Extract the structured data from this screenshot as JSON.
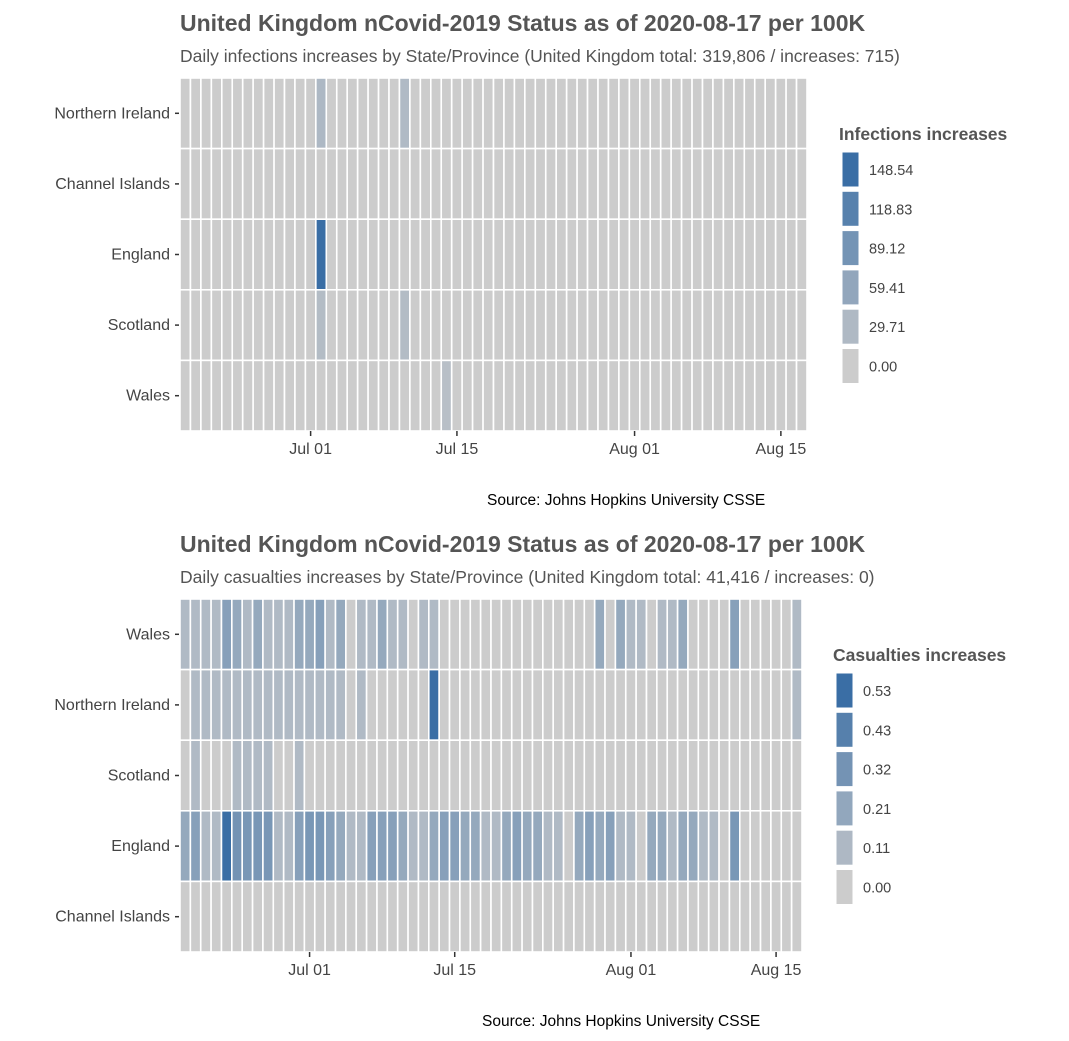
{
  "charts": [
    {
      "title": "United Kingdom nCovid-2019 Status as of 2020-08-17 per 100K",
      "subtitle": "Daily infections increases by State/Province (United Kingdom total: 319,806 / increases: 715)",
      "caption": "Source: Johns Hopkins University CSSE",
      "legend_title": "Infections increases",
      "legend_labels": [
        "148.54",
        "118.83",
        "89.12",
        "59.41",
        "29.71",
        "0.00"
      ]
    },
    {
      "title": "United Kingdom nCovid-2019 Status as of 2020-08-17 per 100K",
      "subtitle": "Daily casualties increases by State/Province (United Kingdom total: 41,416 / increases: 0)",
      "caption": "Source: Johns Hopkins University CSSE",
      "legend_title": "Casualties increases",
      "legend_labels": [
        "0.53",
        "0.43",
        "0.32",
        "0.21",
        "0.11",
        "0.00"
      ]
    }
  ],
  "colors": {
    "low": "#cccccc",
    "high": "#3a6ea5",
    "grid_line": "#ffffff",
    "text": "#555555"
  },
  "chart_data": [
    {
      "type": "heatmap",
      "title": "United Kingdom nCovid-2019 Status as of 2020-08-17 per 100K",
      "x_start": "2020-06-19",
      "x_end": "2020-08-17",
      "xticks": [
        {
          "date": "2020-07-01",
          "label": "Jul 01"
        },
        {
          "date": "2020-07-15",
          "label": "Jul 15"
        },
        {
          "date": "2020-08-01",
          "label": "Aug 01"
        },
        {
          "date": "2020-08-15",
          "label": "Aug 15"
        }
      ],
      "rows": [
        "Northern Ireland",
        "Channel Islands",
        "England",
        "Scotland",
        "Wales"
      ],
      "max": 148.54,
      "default_value": 0,
      "cells": [
        {
          "row": "Northern Ireland",
          "date": "2020-07-02",
          "value": 32
        },
        {
          "row": "Northern Ireland",
          "date": "2020-07-10",
          "value": 28
        },
        {
          "row": "England",
          "date": "2020-07-02",
          "value": 148.54
        },
        {
          "row": "Scotland",
          "date": "2020-07-02",
          "value": 25
        },
        {
          "row": "Scotland",
          "date": "2020-07-10",
          "value": 25
        },
        {
          "row": "Wales",
          "date": "2020-07-14",
          "value": 20
        }
      ]
    },
    {
      "type": "heatmap",
      "title": "United Kingdom nCovid-2019 Status as of 2020-08-17 per 100K",
      "x_start": "2020-06-19",
      "x_end": "2020-08-17",
      "xticks": [
        {
          "date": "2020-07-01",
          "label": "Jul 01"
        },
        {
          "date": "2020-07-15",
          "label": "Jul 15"
        },
        {
          "date": "2020-08-01",
          "label": "Aug 01"
        },
        {
          "date": "2020-08-15",
          "label": "Aug 15"
        }
      ],
      "rows": [
        "Wales",
        "Northern Ireland",
        "Scotland",
        "England",
        "Channel Islands"
      ],
      "max": 0.53,
      "default_value": 0,
      "cells": [
        {
          "row": "Wales",
          "date": "2020-06-19",
          "value": 0.1
        },
        {
          "row": "Wales",
          "date": "2020-06-20",
          "value": 0.1
        },
        {
          "row": "Wales",
          "date": "2020-06-21",
          "value": 0.1
        },
        {
          "row": "Wales",
          "date": "2020-06-22",
          "value": 0.1
        },
        {
          "row": "Wales",
          "date": "2020-06-23",
          "value": 0.25
        },
        {
          "row": "Wales",
          "date": "2020-06-24",
          "value": 0.2
        },
        {
          "row": "Wales",
          "date": "2020-06-25",
          "value": 0.1
        },
        {
          "row": "Wales",
          "date": "2020-06-26",
          "value": 0.2
        },
        {
          "row": "Wales",
          "date": "2020-06-27",
          "value": 0.1
        },
        {
          "row": "Wales",
          "date": "2020-06-28",
          "value": 0.1
        },
        {
          "row": "Wales",
          "date": "2020-06-29",
          "value": 0.1
        },
        {
          "row": "Wales",
          "date": "2020-06-30",
          "value": 0.2
        },
        {
          "row": "Wales",
          "date": "2020-07-01",
          "value": 0.2
        },
        {
          "row": "Wales",
          "date": "2020-07-02",
          "value": 0.25
        },
        {
          "row": "Wales",
          "date": "2020-07-03",
          "value": 0.1
        },
        {
          "row": "Wales",
          "date": "2020-07-04",
          "value": 0.2
        },
        {
          "row": "Wales",
          "date": "2020-07-06",
          "value": 0.1
        },
        {
          "row": "Wales",
          "date": "2020-07-07",
          "value": 0.1
        },
        {
          "row": "Wales",
          "date": "2020-07-08",
          "value": 0.2
        },
        {
          "row": "Wales",
          "date": "2020-07-09",
          "value": 0.1
        },
        {
          "row": "Wales",
          "date": "2020-07-10",
          "value": 0.1
        },
        {
          "row": "Wales",
          "date": "2020-07-12",
          "value": 0.1
        },
        {
          "row": "Wales",
          "date": "2020-07-13",
          "value": 0.1
        },
        {
          "row": "Wales",
          "date": "2020-08-02",
          "value": 0.1
        },
        {
          "row": "Wales",
          "date": "2020-07-29",
          "value": 0.2
        },
        {
          "row": "Wales",
          "date": "2020-07-31",
          "value": 0.2
        },
        {
          "row": "Wales",
          "date": "2020-08-01",
          "value": 0.1
        },
        {
          "row": "Wales",
          "date": "2020-08-04",
          "value": 0.1
        },
        {
          "row": "Wales",
          "date": "2020-08-05",
          "value": 0.1
        },
        {
          "row": "Wales",
          "date": "2020-08-06",
          "value": 0.2
        },
        {
          "row": "Wales",
          "date": "2020-08-11",
          "value": 0.25
        },
        {
          "row": "Wales",
          "date": "2020-08-17",
          "value": 0.1
        },
        {
          "row": "Northern Ireland",
          "date": "2020-06-20",
          "value": 0.1
        },
        {
          "row": "Northern Ireland",
          "date": "2020-06-21",
          "value": 0.1
        },
        {
          "row": "Northern Ireland",
          "date": "2020-06-22",
          "value": 0.1
        },
        {
          "row": "Northern Ireland",
          "date": "2020-06-23",
          "value": 0.1
        },
        {
          "row": "Northern Ireland",
          "date": "2020-06-24",
          "value": 0.1
        },
        {
          "row": "Northern Ireland",
          "date": "2020-06-25",
          "value": 0.1
        },
        {
          "row": "Northern Ireland",
          "date": "2020-06-26",
          "value": 0.1
        },
        {
          "row": "Northern Ireland",
          "date": "2020-06-27",
          "value": 0.1
        },
        {
          "row": "Northern Ireland",
          "date": "2020-06-28",
          "value": 0.1
        },
        {
          "row": "Northern Ireland",
          "date": "2020-06-29",
          "value": 0.1
        },
        {
          "row": "Northern Ireland",
          "date": "2020-06-30",
          "value": 0.1
        },
        {
          "row": "Northern Ireland",
          "date": "2020-07-01",
          "value": 0.1
        },
        {
          "row": "Northern Ireland",
          "date": "2020-07-02",
          "value": 0.1
        },
        {
          "row": "Northern Ireland",
          "date": "2020-07-03",
          "value": 0.1
        },
        {
          "row": "Northern Ireland",
          "date": "2020-07-04",
          "value": 0.1
        },
        {
          "row": "Northern Ireland",
          "date": "2020-07-06",
          "value": 0.1
        },
        {
          "row": "Northern Ireland",
          "date": "2020-07-13",
          "value": 0.53
        },
        {
          "row": "Northern Ireland",
          "date": "2020-08-17",
          "value": 0.1
        },
        {
          "row": "Scotland",
          "date": "2020-06-20",
          "value": 0.1
        },
        {
          "row": "Scotland",
          "date": "2020-06-24",
          "value": 0.1
        },
        {
          "row": "Scotland",
          "date": "2020-06-25",
          "value": 0.1
        },
        {
          "row": "Scotland",
          "date": "2020-06-26",
          "value": 0.1
        },
        {
          "row": "Scotland",
          "date": "2020-06-27",
          "value": 0.1
        },
        {
          "row": "Scotland",
          "date": "2020-06-30",
          "value": 0.1
        },
        {
          "row": "England",
          "date": "2020-06-19",
          "value": 0.2
        },
        {
          "row": "England",
          "date": "2020-06-20",
          "value": 0.25
        },
        {
          "row": "England",
          "date": "2020-06-21",
          "value": 0.1
        },
        {
          "row": "England",
          "date": "2020-06-22",
          "value": 0.1
        },
        {
          "row": "England",
          "date": "2020-06-23",
          "value": 0.53
        },
        {
          "row": "England",
          "date": "2020-06-24",
          "value": 0.32
        },
        {
          "row": "England",
          "date": "2020-06-25",
          "value": 0.3
        },
        {
          "row": "England",
          "date": "2020-06-26",
          "value": 0.3
        },
        {
          "row": "England",
          "date": "2020-06-27",
          "value": 0.3
        },
        {
          "row": "England",
          "date": "2020-06-28",
          "value": 0.1
        },
        {
          "row": "England",
          "date": "2020-06-29",
          "value": 0.1
        },
        {
          "row": "England",
          "date": "2020-06-30",
          "value": 0.25
        },
        {
          "row": "England",
          "date": "2020-07-01",
          "value": 0.3
        },
        {
          "row": "England",
          "date": "2020-07-02",
          "value": 0.3
        },
        {
          "row": "England",
          "date": "2020-07-03",
          "value": 0.25
        },
        {
          "row": "England",
          "date": "2020-07-04",
          "value": 0.2
        },
        {
          "row": "England",
          "date": "2020-07-05",
          "value": 0.1
        },
        {
          "row": "England",
          "date": "2020-07-06",
          "value": 0.1
        },
        {
          "row": "England",
          "date": "2020-07-07",
          "value": 0.25
        },
        {
          "row": "England",
          "date": "2020-07-08",
          "value": 0.25
        },
        {
          "row": "England",
          "date": "2020-07-09",
          "value": 0.25
        },
        {
          "row": "England",
          "date": "2020-07-10",
          "value": 0.2
        },
        {
          "row": "England",
          "date": "2020-07-11",
          "value": 0.1
        },
        {
          "row": "England",
          "date": "2020-07-12",
          "value": 0.1
        },
        {
          "row": "England",
          "date": "2020-07-13",
          "value": 0.2
        },
        {
          "row": "England",
          "date": "2020-07-14",
          "value": 0.25
        },
        {
          "row": "England",
          "date": "2020-07-15",
          "value": 0.25
        },
        {
          "row": "England",
          "date": "2020-07-16",
          "value": 0.2
        },
        {
          "row": "England",
          "date": "2020-07-17",
          "value": 0.2
        },
        {
          "row": "England",
          "date": "2020-07-18",
          "value": 0.1
        },
        {
          "row": "England",
          "date": "2020-07-19",
          "value": 0.1
        },
        {
          "row": "England",
          "date": "2020-07-20",
          "value": 0.2
        },
        {
          "row": "England",
          "date": "2020-07-21",
          "value": 0.25
        },
        {
          "row": "England",
          "date": "2020-07-22",
          "value": 0.2
        },
        {
          "row": "England",
          "date": "2020-07-23",
          "value": 0.2
        },
        {
          "row": "England",
          "date": "2020-07-24",
          "value": 0.1
        },
        {
          "row": "England",
          "date": "2020-07-25",
          "value": 0.1
        },
        {
          "row": "England",
          "date": "2020-07-27",
          "value": 0.2
        },
        {
          "row": "England",
          "date": "2020-07-28",
          "value": 0.25
        },
        {
          "row": "England",
          "date": "2020-07-29",
          "value": 0.2
        },
        {
          "row": "England",
          "date": "2020-07-30",
          "value": 0.25
        },
        {
          "row": "England",
          "date": "2020-07-31",
          "value": 0.1
        },
        {
          "row": "England",
          "date": "2020-08-01",
          "value": 0.1
        },
        {
          "row": "England",
          "date": "2020-08-03",
          "value": 0.2
        },
        {
          "row": "England",
          "date": "2020-08-04",
          "value": 0.2
        },
        {
          "row": "England",
          "date": "2020-08-05",
          "value": 0.1
        },
        {
          "row": "England",
          "date": "2020-08-06",
          "value": 0.2
        },
        {
          "row": "England",
          "date": "2020-08-07",
          "value": 0.2
        },
        {
          "row": "England",
          "date": "2020-08-08",
          "value": 0.1
        },
        {
          "row": "England",
          "date": "2020-08-09",
          "value": 0.1
        },
        {
          "row": "England",
          "date": "2020-08-11",
          "value": 0.3
        }
      ]
    }
  ]
}
